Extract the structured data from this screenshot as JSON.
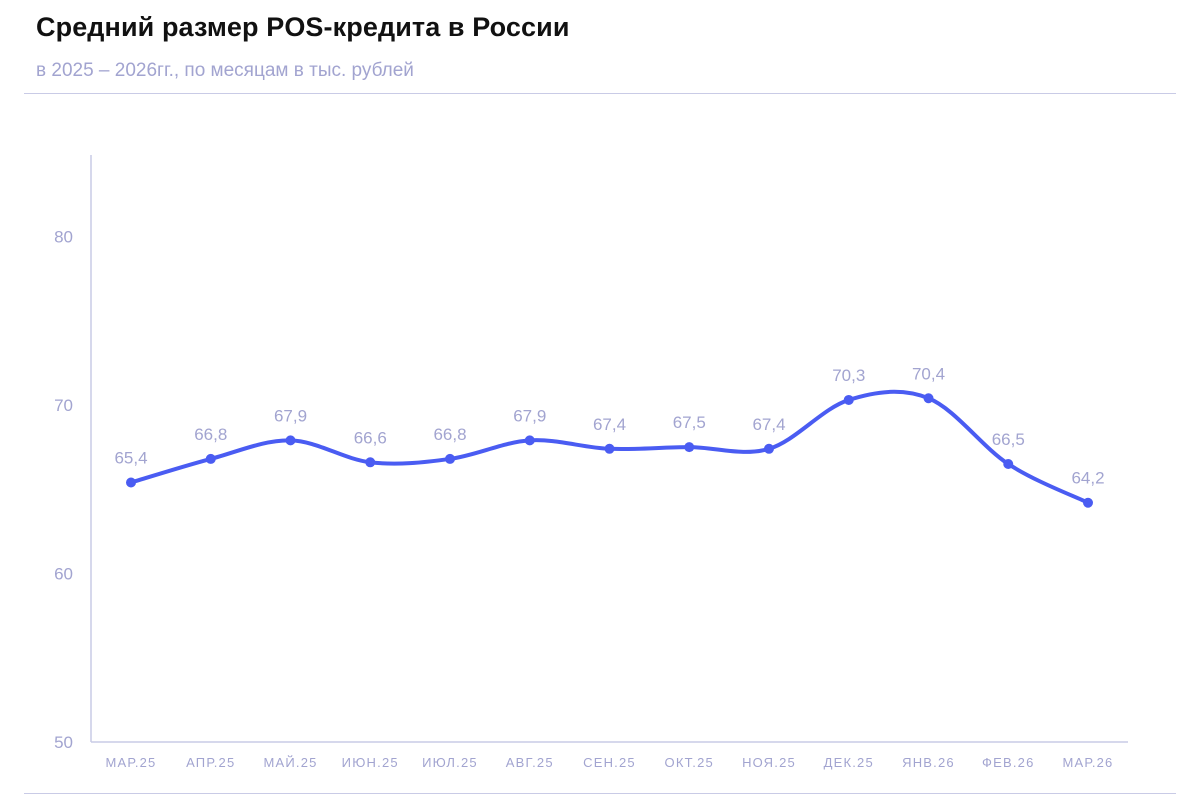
{
  "header": {
    "title": "Средний размер POS-кредита в России",
    "subtitle": "в 2025 – 2026гг., по месяцам в тыс. рублей"
  },
  "colors": {
    "line": "#4a5cf2",
    "axis": "#c9cbe6",
    "muted_text": "#a2a4d0",
    "title_text": "#111111"
  },
  "chart_data": {
    "type": "line",
    "title": "Средний размер POS-кредита в России",
    "subtitle": "в 2025 – 2026гг., по месяцам в тыс. рублей",
    "xlabel": "",
    "ylabel": "",
    "ylim": [
      50,
      85
    ],
    "yticks": [
      50,
      60,
      70,
      80
    ],
    "ytick_labels": [
      "50",
      "60",
      "70",
      "80"
    ],
    "grid": false,
    "smooth": true,
    "categories": [
      "МАР.25",
      "АПР.25",
      "МАЙ.25",
      "ИЮН.25",
      "ИЮЛ.25",
      "АВГ.25",
      "СЕН.25",
      "ОКТ.25",
      "НОЯ.25",
      "ДЕК.25",
      "ЯНВ.26",
      "ФЕВ.26",
      "МАР.26"
    ],
    "series": [
      {
        "values": [
          65.4,
          66.8,
          67.9,
          66.6,
          66.8,
          67.9,
          67.4,
          67.5,
          67.4,
          70.3,
          70.4,
          66.5,
          64.2
        ],
        "labels": [
          "65,4",
          "66,8",
          "67,9",
          "66,6",
          "66,8",
          "67,9",
          "67,4",
          "67,5",
          "67,4",
          "70,3",
          "70,4",
          "66,5",
          "64,2"
        ]
      }
    ]
  }
}
